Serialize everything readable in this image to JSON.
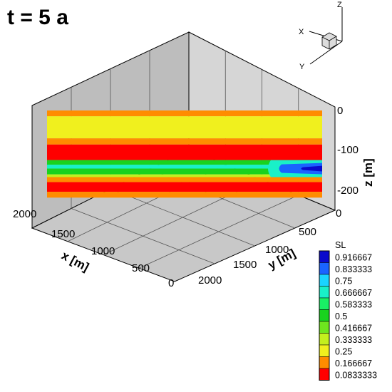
{
  "title": "t = 5 a",
  "chart_data": {
    "type": "heatmap",
    "title": "t = 5 a",
    "x_axis": {
      "label": "x [m]",
      "range": [
        0,
        2000
      ],
      "ticks": [
        "2000",
        "1500",
        "1000",
        "500",
        "0"
      ]
    },
    "y_axis": {
      "label": "y [m]",
      "range": [
        0,
        2000
      ],
      "ticks": [
        "0",
        "500",
        "1000",
        "1500",
        "2000"
      ]
    },
    "z_axis": {
      "label": "z [m]",
      "range": [
        -230,
        0
      ],
      "ticks": [
        "0",
        "-100",
        "-200"
      ]
    },
    "colorbar": {
      "title": "SL",
      "levels": [
        "0.916667",
        "0.833333",
        "0.75",
        "0.666667",
        "0.583333",
        "0.5",
        "0.416667",
        "0.333333",
        "0.25",
        "0.166667",
        "0.0833333"
      ],
      "colors": [
        "#0a0acc",
        "#1a64ff",
        "#1ad4ff",
        "#19f0c8",
        "#19f065",
        "#19d21e",
        "#6ee61e",
        "#c3f01e",
        "#f0f01e",
        "#ff8c00",
        "#ff0000"
      ]
    },
    "layers": [
      {
        "z_top": 0,
        "z_bottom": -15,
        "SL": 0.1667
      },
      {
        "z_top": -15,
        "z_bottom": -72,
        "SL": 0.25
      },
      {
        "z_top": -72,
        "z_bottom": -88,
        "SL": 0.1667
      },
      {
        "z_top": -88,
        "z_bottom": -128,
        "SL": 0.0833
      },
      {
        "z_top": -128,
        "z_bottom": -140,
        "SL": 0.5
      },
      {
        "z_top": -140,
        "z_bottom": -150,
        "SL": 0.6667
      },
      {
        "z_top": -150,
        "z_bottom": -165,
        "SL": 0.5
      },
      {
        "z_top": -165,
        "z_bottom": -172,
        "SL": 0.3333
      },
      {
        "z_top": -172,
        "z_bottom": -185,
        "SL": 0.1667
      },
      {
        "z_top": -185,
        "z_bottom": -210,
        "SL": 0.0833
      },
      {
        "z_top": -210,
        "z_bottom": -225,
        "SL": 0.1667
      }
    ],
    "grid": true,
    "legend_position": "bottom-right"
  },
  "orientation": {
    "x": "X",
    "y": "Y",
    "z": "Z"
  }
}
